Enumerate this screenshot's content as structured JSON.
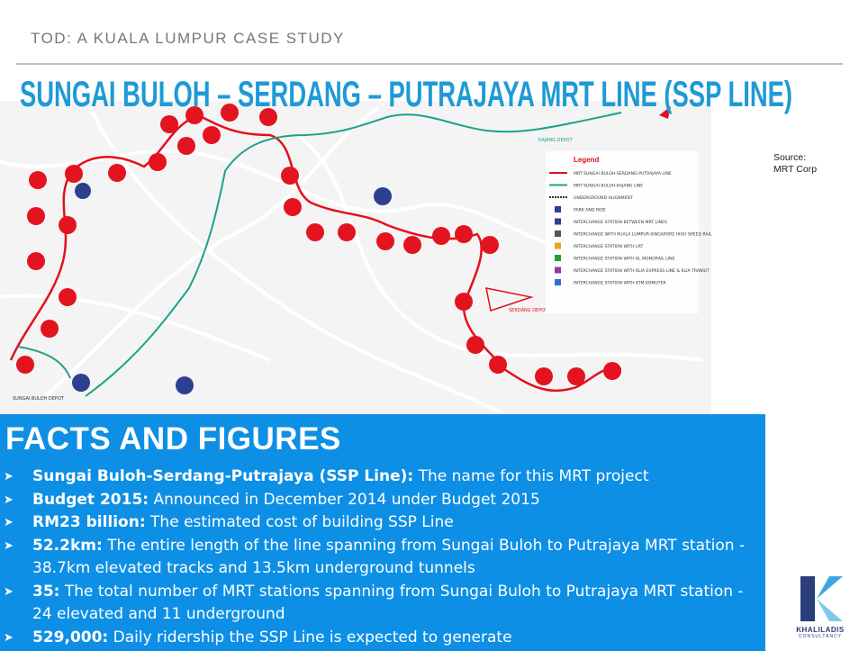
{
  "header": {
    "section": "TOD: A KUALA LUMPUR CASE STUDY",
    "title": "SUNGAI BULOH – SERDANG – PUTRAJAYA MRT LINE (SSP LINE)",
    "source": "Source:\nMRT Corp"
  },
  "map": {
    "legend_title": "Legend",
    "legend_items": [
      "MRT SUNGAI BULOH-SERDANG-PUTRAJAYA LINE",
      "MRT SUNGAI BULOH-KAJANG LINE",
      "UNDERGROUND ALIGNMENT",
      "PARK AND RIDE",
      "INTERCHANGE STATION BETWEEN MRT LINES",
      "INTERCHANGE WITH KUALA LUMPUR-SINGAPORE HIGH SPEED RAIL",
      "INTERCHANGE STATION WITH LRT",
      "INTERCHANGE STATION WITH KL MONORAIL LINE",
      "INTERCHANGE STATION WITH KLIA EXPRESS LINE & KLIA TRANSIT",
      "INTERCHANGE STATION WITH KTM KOMUTER"
    ],
    "depots": [
      "SUNGAI BULOH DEPOT",
      "SERDANG DEPOT",
      "KAJANG DEPOT"
    ]
  },
  "facts": {
    "title": "FACTS AND FIGURES",
    "items": [
      {
        "term": "Sungai Buloh-Serdang-Putrajaya (SSP Line):",
        "text": "The name for this MRT project"
      },
      {
        "term": "Budget 2015:",
        "text": "Announced in December 2014 under Budget 2015"
      },
      {
        "term": "RM23 billion:",
        "text": "The estimated cost of building SSP Line"
      },
      {
        "term": "52.2km:",
        "text": "The entire length of the line spanning from Sungai Buloh to Putrajaya MRT station - 38.7km elevated tracks and 13.5km underground tunnels"
      },
      {
        "term": "35:",
        "text": "The total number of MRT stations spanning from Sungai Buloh to Putrajaya MRT station - 24 elevated and 11 underground"
      },
      {
        "term": "529,000:",
        "text": "Daily ridership the SSP Line is expected to generate"
      }
    ]
  },
  "logo": {
    "name": "KHALILADIS",
    "sub": "CONSULTANCY"
  }
}
